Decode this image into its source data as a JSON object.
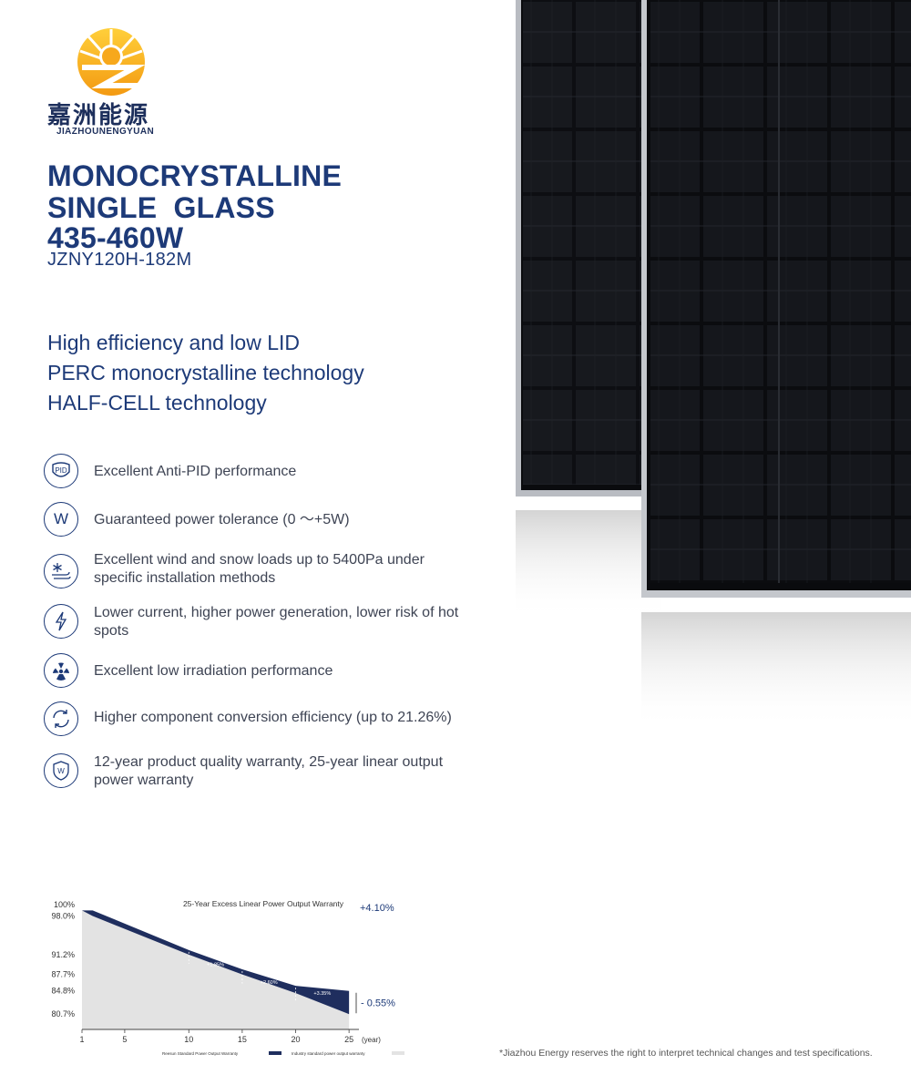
{
  "brand": {
    "name_cn": "嘉洲能源",
    "name_en": "JIAZHOUNENGYUAN"
  },
  "title": {
    "line1": "MONOCRYSTALLINE",
    "line2": "SINGLE  GLASS",
    "line3": "435-460W",
    "model": "JZNY120H-182M"
  },
  "technologies": [
    "High efficiency and low LID",
    "PERC monocrystalline technology",
    "HALF-CELL technology"
  ],
  "features": [
    {
      "icon": "pid-icon",
      "icon_label": "PID",
      "text": "Excellent Anti-PID performance"
    },
    {
      "icon": "watt-icon",
      "icon_label": "W",
      "text": "Guaranteed power tolerance (0 ～+5W)"
    },
    {
      "icon": "snow-wind-icon",
      "text": "Excellent wind and snow loads up to 5400Pa under specific installation methods"
    },
    {
      "icon": "lightning-icon",
      "text": "Lower current, higher power generation, lower risk of hot spots"
    },
    {
      "icon": "irradiation-icon",
      "text": "Excellent low irradiation performance"
    },
    {
      "icon": "conversion-icon",
      "text": "Higher component conversion efficiency (up to 21.26%)"
    },
    {
      "icon": "warranty-shield-icon",
      "icon_label": "W",
      "text": "12-year product quality warranty, 25-year linear output power warranty"
    }
  ],
  "chart_data": {
    "type": "area",
    "title": "25-Year Excess Linear Power Output Warranty",
    "x": [
      0,
      1,
      10,
      15,
      20,
      25
    ],
    "x_ticks": [
      "1",
      "5",
      "10",
      "15",
      "20",
      "25"
    ],
    "x_unit": "(year)",
    "y_ticks": [
      "100%",
      "98.0%",
      "91.2%",
      "87.7%",
      "84.8%",
      "80.7%"
    ],
    "ylim": [
      78,
      100.5
    ],
    "series": [
      {
        "name": "Reesun Standard Power Output Warranty",
        "values": [
          99.0,
          99.0,
          92.0,
          88.6,
          85.7,
          84.8
        ]
      },
      {
        "name": "Industry standard power output warranty",
        "values": [
          99.0,
          98.0,
          91.2,
          87.7,
          84.4,
          80.7
        ]
      }
    ],
    "gap_labels": [
      "+1.85%",
      "+2.60%",
      "+3.35%"
    ],
    "start_note": "+4.10%",
    "end_note": "- 0.55%"
  },
  "colors": {
    "brand_blue": "#1d3a78",
    "reesun_fill": "#1f2e5e",
    "industry_fill": "#e3e3e3"
  },
  "footnote": "*Jiazhou Energy reserves the right to interpret technical changes and test specifications."
}
